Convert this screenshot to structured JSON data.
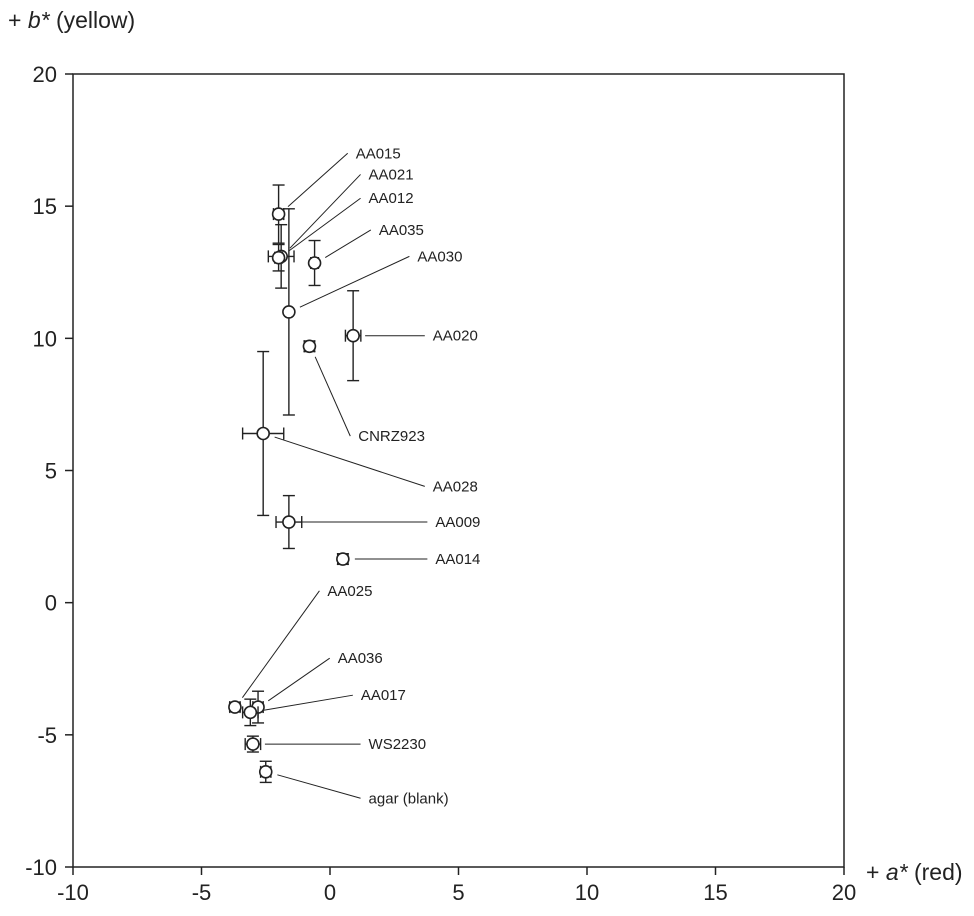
{
  "chart_data": {
    "type": "scatter",
    "title": "",
    "xlabel": {
      "prefix": "+ ",
      "var": "a*",
      "suffix": " (red)"
    },
    "ylabel": {
      "prefix": "+ ",
      "var": "b*",
      "suffix": " (yellow)"
    },
    "xlim": [
      -10,
      20
    ],
    "ylim": [
      -10,
      20
    ],
    "xticks": [
      -10,
      -5,
      0,
      5,
      10,
      15,
      20
    ],
    "yticks": [
      -10,
      -5,
      0,
      5,
      10,
      15,
      20
    ],
    "grid": false,
    "legend": "none",
    "points": [
      {
        "label": "AA015",
        "x": -2.0,
        "y": 14.7,
        "xerr": 0.2,
        "yerr": 1.1,
        "label_x": 1.0,
        "label_y": 17.0
      },
      {
        "label": "AA021",
        "x": -1.9,
        "y": 13.1,
        "xerr": 0.5,
        "yerr": 1.2,
        "label_x": 1.5,
        "label_y": 16.2
      },
      {
        "label": "AA012",
        "x": -2.0,
        "y": 13.05,
        "xerr": 0.15,
        "yerr": 0.5,
        "label_x": 1.5,
        "label_y": 15.3
      },
      {
        "label": "AA035",
        "x": -0.6,
        "y": 12.85,
        "xerr": 0.15,
        "yerr": 0.85,
        "label_x": 1.9,
        "label_y": 14.1
      },
      {
        "label": "AA030",
        "x": -1.6,
        "y": 11.0,
        "xerr": 0.1,
        "yerr": 3.9,
        "label_x": 3.4,
        "label_y": 13.1
      },
      {
        "label": "AA020",
        "x": 0.9,
        "y": 10.1,
        "xerr": 0.3,
        "yerr": 1.7,
        "label_x": 4.0,
        "label_y": 10.1
      },
      {
        "label": "CNRZ923",
        "x": -0.8,
        "y": 9.7,
        "xerr": 0.2,
        "yerr": 0.2,
        "label_x": 1.1,
        "label_y": 6.3
      },
      {
        "label": "AA028",
        "x": -2.6,
        "y": 6.4,
        "xerr": 0.8,
        "yerr": 3.1,
        "label_x": 4.0,
        "label_y": 4.4
      },
      {
        "label": "AA009",
        "x": -1.6,
        "y": 3.05,
        "xerr": 0.5,
        "yerr": 1.0,
        "label_x": 4.1,
        "label_y": 3.05
      },
      {
        "label": "AA014",
        "x": 0.5,
        "y": 1.65,
        "xerr": 0.2,
        "yerr": 0.2,
        "label_x": 4.1,
        "label_y": 1.65
      },
      {
        "label": "AA025",
        "x": -3.7,
        "y": -3.95,
        "xerr": 0.2,
        "yerr": 0.15,
        "label_x": -0.1,
        "label_y": 0.45
      },
      {
        "label": "AA036",
        "x": -2.8,
        "y": -3.95,
        "xerr": 0.2,
        "yerr": 0.6,
        "label_x": 0.3,
        "label_y": -2.1
      },
      {
        "label": "AA017",
        "x": -3.1,
        "y": -4.15,
        "xerr": 0.3,
        "yerr": 0.5,
        "label_x": 1.2,
        "label_y": -3.5
      },
      {
        "label": "WS2230",
        "x": -3.0,
        "y": -5.35,
        "xerr": 0.3,
        "yerr": 0.3,
        "label_x": 1.5,
        "label_y": -5.35
      },
      {
        "label": "agar (blank)",
        "x": -2.5,
        "y": -6.4,
        "xerr": 0.2,
        "yerr": 0.4,
        "label_x": 1.5,
        "label_y": -7.4
      }
    ]
  }
}
